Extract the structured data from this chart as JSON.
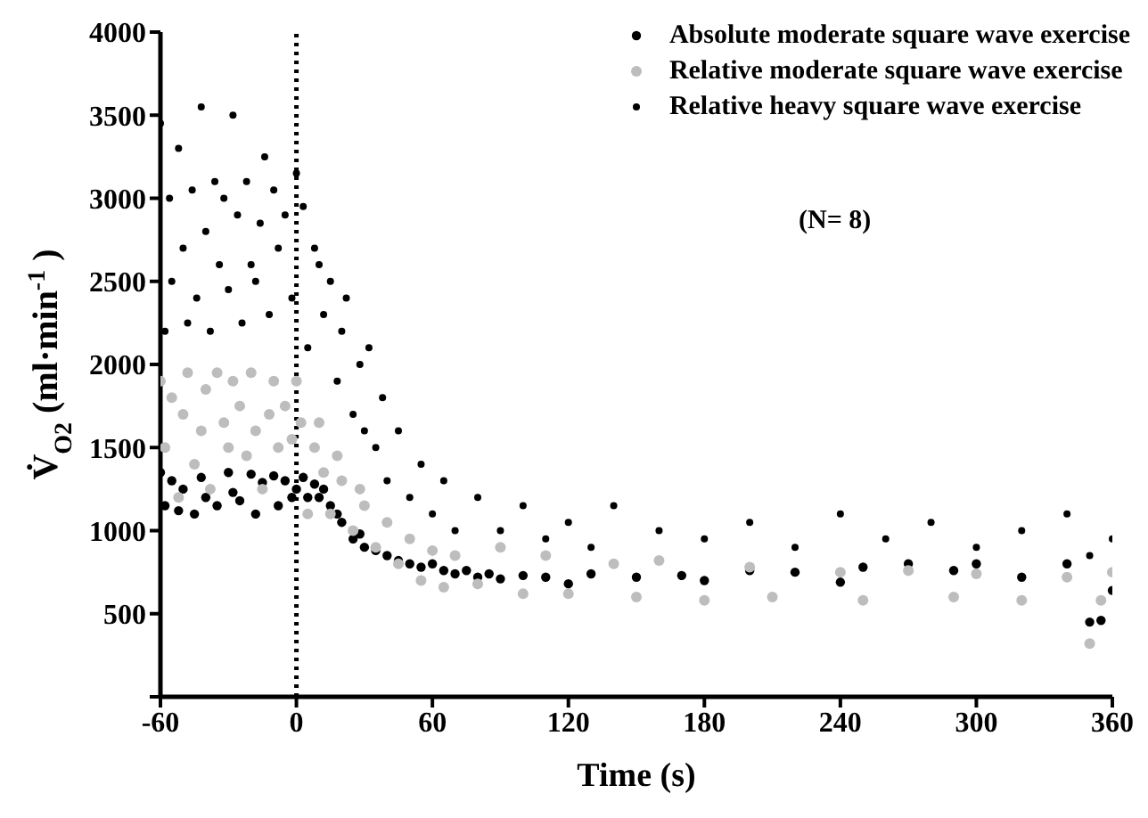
{
  "chart_data": {
    "type": "scatter",
    "xlabel": "Time (s)",
    "ylabel": "V̇$_{O2}$ (ml·min$^{-1}$)",
    "annotations": [
      "(N= 8)"
    ],
    "marker": "circle",
    "legend": "top right",
    "xlim": [
      -60,
      360
    ],
    "xticks": [
      -60,
      0,
      60,
      120,
      180,
      240,
      300,
      360
    ],
    "ylim": [
      0,
      4000
    ],
    "yticks": [
      {
        "value": 0,
        "label": null
      },
      500,
      1000,
      1500,
      2000,
      2500,
      3000,
      3500,
      4000
    ],
    "ref_lines": [
      {
        "axis": "x",
        "value": 0,
        "label": null,
        "color": "#000000",
        "line_style": "dotted"
      }
    ],
    "series": [
      {
        "name": "Absolute moderate square wave exercise",
        "color": "#000000",
        "x": [
          -60,
          -58,
          -55,
          -52,
          -50,
          -45,
          -42,
          -40,
          -35,
          -30,
          -28,
          -25,
          -20,
          -18,
          -15,
          -10,
          -8,
          -5,
          -2,
          0,
          3,
          5,
          8,
          10,
          12,
          15,
          18,
          20,
          25,
          28,
          30,
          35,
          40,
          45,
          50,
          55,
          60,
          65,
          70,
          75,
          80,
          85,
          90,
          100,
          110,
          120,
          130,
          150,
          170,
          180,
          200,
          220,
          240,
          250,
          270,
          290,
          300,
          320,
          340,
          350,
          355,
          360
        ],
        "values": [
          1350,
          1150,
          1300,
          1120,
          1250,
          1100,
          1320,
          1200,
          1150,
          1350,
          1230,
          1180,
          1340,
          1100,
          1290,
          1330,
          1150,
          1300,
          1200,
          1250,
          1320,
          1200,
          1280,
          1200,
          1250,
          1150,
          1100,
          1050,
          950,
          980,
          900,
          880,
          850,
          820,
          800,
          780,
          800,
          760,
          740,
          760,
          720,
          740,
          710,
          730,
          720,
          680,
          740,
          720,
          730,
          700,
          760,
          750,
          690,
          780,
          800,
          760,
          800,
          720,
          800,
          450,
          460,
          640
        ]
      },
      {
        "name": "Relative moderate square wave exercise",
        "color": "#bdbdbd",
        "x": [
          -60,
          -58,
          -55,
          -52,
          -50,
          -48,
          -45,
          -42,
          -40,
          -38,
          -35,
          -32,
          -30,
          -28,
          -25,
          -22,
          -20,
          -18,
          -15,
          -12,
          -10,
          -8,
          -5,
          -2,
          0,
          2,
          5,
          8,
          10,
          12,
          15,
          18,
          20,
          25,
          28,
          30,
          35,
          40,
          45,
          50,
          55,
          60,
          65,
          70,
          80,
          90,
          100,
          110,
          120,
          140,
          150,
          160,
          180,
          200,
          210,
          240,
          250,
          270,
          290,
          300,
          320,
          340,
          350,
          355,
          360
        ],
        "values": [
          1900,
          1500,
          1800,
          1200,
          1700,
          1950,
          1400,
          1600,
          1850,
          1250,
          1950,
          1650,
          1500,
          1900,
          1750,
          1450,
          1950,
          1600,
          1250,
          1700,
          1900,
          1500,
          1750,
          1550,
          1900,
          1650,
          1100,
          1500,
          1650,
          1350,
          1100,
          1450,
          1300,
          1000,
          1250,
          1150,
          900,
          1050,
          800,
          950,
          700,
          880,
          660,
          850,
          680,
          900,
          620,
          850,
          620,
          800,
          600,
          820,
          580,
          780,
          600,
          750,
          580,
          760,
          600,
          740,
          580,
          720,
          320,
          580,
          750
        ]
      },
      {
        "name": "Relative heavy square wave exercise",
        "color": "#000000",
        "x": [
          -60,
          -58,
          -56,
          -55,
          -52,
          -50,
          -48,
          -46,
          -44,
          -42,
          -40,
          -38,
          -36,
          -34,
          -32,
          -30,
          -28,
          -26,
          -24,
          -22,
          -20,
          -18,
          -16,
          -14,
          -12,
          -10,
          -8,
          -5,
          -2,
          0,
          3,
          5,
          8,
          10,
          12,
          15,
          18,
          20,
          22,
          25,
          28,
          30,
          32,
          35,
          38,
          40,
          45,
          50,
          55,
          60,
          65,
          70,
          80,
          90,
          100,
          110,
          120,
          130,
          140,
          160,
          180,
          200,
          220,
          240,
          260,
          280,
          300,
          320,
          340,
          350,
          360
        ],
        "values": [
          3450,
          2200,
          3000,
          2500,
          3300,
          2700,
          2250,
          3050,
          2400,
          3550,
          2800,
          2200,
          3100,
          2600,
          3000,
          2450,
          3500,
          2900,
          2250,
          3100,
          2600,
          2500,
          2850,
          3250,
          2300,
          3050,
          2700,
          2900,
          2400,
          3150,
          2950,
          2100,
          2700,
          2600,
          2300,
          2500,
          1900,
          2200,
          2400,
          1700,
          2000,
          1600,
          2100,
          1500,
          1800,
          1300,
          1600,
          1200,
          1400,
          1100,
          1300,
          1000,
          1200,
          1000,
          1150,
          950,
          1050,
          900,
          1150,
          1000,
          950,
          1050,
          900,
          1100,
          950,
          1050,
          900,
          1000,
          1100,
          850,
          950
        ]
      }
    ]
  }
}
